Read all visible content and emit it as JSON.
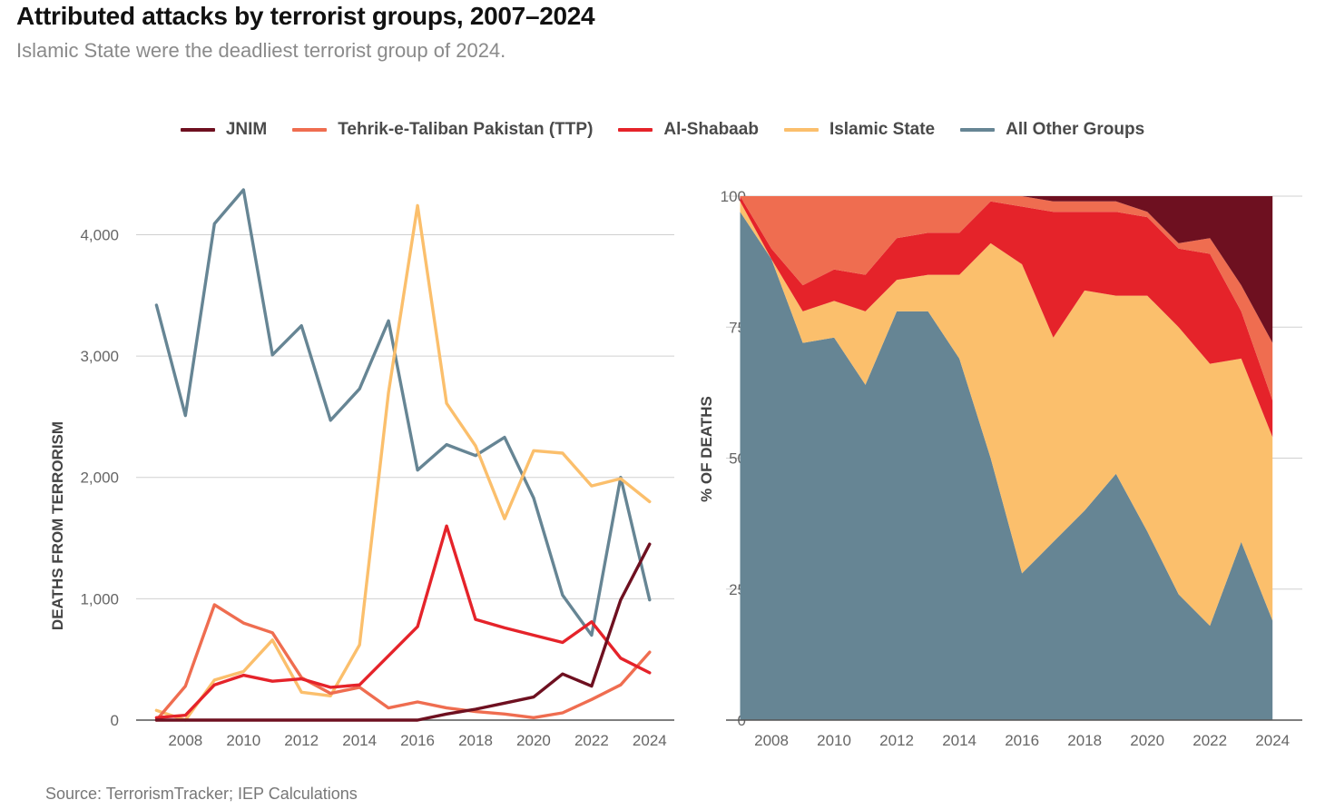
{
  "title": "Attributed attacks by terrorist groups, 2007–2024",
  "subtitle": "Islamic State were the deadliest terrorist group of 2024.",
  "source": "Source: TerrorismTracker; IEP Calculations",
  "legend": [
    {
      "name": "JNIM",
      "color": "#6e1020"
    },
    {
      "name": "Tehrik-e-Taliban Pakistan (TTP)",
      "color": "#ef6d50"
    },
    {
      "name": "Al-Shabaab",
      "color": "#e5232a"
    },
    {
      "name": "Islamic State",
      "color": "#fbbf6c"
    },
    {
      "name": "All Other Groups",
      "color": "#668594"
    }
  ],
  "chart_data": [
    {
      "type": "line",
      "ylabel": "DEATHS FROM TERRORISM",
      "xlabel": "",
      "ylim": [
        0,
        4400
      ],
      "yticks": [
        0,
        1000,
        2000,
        3000,
        4000
      ],
      "ytick_labels": [
        "0",
        "1,000",
        "2,000",
        "3,000",
        "4,000"
      ],
      "xticks": [
        2008,
        2010,
        2012,
        2014,
        2016,
        2018,
        2020,
        2022,
        2024
      ],
      "grid": "horizontal",
      "x": [
        2007,
        2008,
        2009,
        2010,
        2011,
        2012,
        2013,
        2014,
        2015,
        2016,
        2017,
        2018,
        2019,
        2020,
        2021,
        2022,
        2023,
        2024
      ],
      "series": [
        {
          "name": "All Other Groups",
          "color": "#668594",
          "values": [
            3420,
            2510,
            4090,
            4370,
            3010,
            3250,
            2470,
            2730,
            3290,
            2060,
            2270,
            2180,
            2330,
            1830,
            1030,
            700,
            2000,
            990
          ]
        },
        {
          "name": "Islamic State",
          "color": "#fbbf6c",
          "values": [
            80,
            0,
            330,
            400,
            660,
            230,
            200,
            620,
            2700,
            4240,
            2610,
            2260,
            1660,
            2220,
            2200,
            1930,
            1990,
            1800
          ]
        },
        {
          "name": "Tehrik-e-Taliban Pakistan (TTP)",
          "color": "#ef6d50",
          "values": [
            0,
            280,
            950,
            800,
            720,
            350,
            220,
            270,
            100,
            150,
            100,
            70,
            50,
            20,
            60,
            170,
            290,
            560
          ]
        },
        {
          "name": "Al-Shabaab",
          "color": "#e5232a",
          "values": [
            20,
            40,
            290,
            370,
            320,
            340,
            270,
            290,
            530,
            770,
            1600,
            830,
            760,
            700,
            640,
            810,
            510,
            390
          ]
        },
        {
          "name": "JNIM",
          "color": "#6e1020",
          "values": [
            0,
            0,
            0,
            0,
            0,
            0,
            0,
            0,
            0,
            0,
            50,
            90,
            140,
            190,
            380,
            280,
            990,
            1450
          ]
        }
      ]
    },
    {
      "type": "area",
      "stacked": "percent",
      "ylabel": "% OF DEATHS",
      "xlabel": "",
      "ylim": [
        0,
        100
      ],
      "yticks": [
        0,
        25,
        50,
        75,
        100
      ],
      "ytick_labels": [
        "0",
        "25",
        "50",
        "75",
        "100"
      ],
      "xticks": [
        2008,
        2010,
        2012,
        2014,
        2016,
        2018,
        2020,
        2022,
        2024
      ],
      "grid": "horizontal",
      "x": [
        2007,
        2008,
        2009,
        2010,
        2011,
        2012,
        2013,
        2014,
        2015,
        2016,
        2017,
        2018,
        2019,
        2020,
        2021,
        2022,
        2023,
        2024
      ],
      "series": [
        {
          "name": "All Other Groups",
          "color": "#668594",
          "values": [
            97,
            88,
            72,
            73,
            64,
            78,
            78,
            69,
            50,
            28,
            34,
            40,
            47,
            36,
            24,
            18,
            34,
            19
          ]
        },
        {
          "name": "Islamic State",
          "color": "#fbbf6c",
          "values": [
            2,
            0,
            6,
            7,
            14,
            6,
            7,
            16,
            41,
            59,
            39,
            42,
            34,
            45,
            51,
            50,
            35,
            35
          ]
        },
        {
          "name": "Al-Shabaab",
          "color": "#e5232a",
          "values": [
            1,
            2,
            5,
            6,
            7,
            8,
            8,
            8,
            8,
            11,
            24,
            15,
            16,
            15,
            15,
            21,
            9,
            7
          ]
        },
        {
          "name": "Tehrik-e-Taliban Pakistan (TTP)",
          "color": "#ef6d50",
          "values": [
            0,
            10,
            17,
            14,
            15,
            8,
            7,
            7,
            1,
            2,
            2,
            2,
            2,
            1,
            1,
            3,
            5,
            11
          ]
        },
        {
          "name": "JNIM",
          "color": "#6e1020",
          "values": [
            0,
            0,
            0,
            0,
            0,
            0,
            0,
            0,
            0,
            0,
            1,
            1,
            1,
            3,
            9,
            8,
            17,
            28
          ]
        }
      ]
    }
  ]
}
